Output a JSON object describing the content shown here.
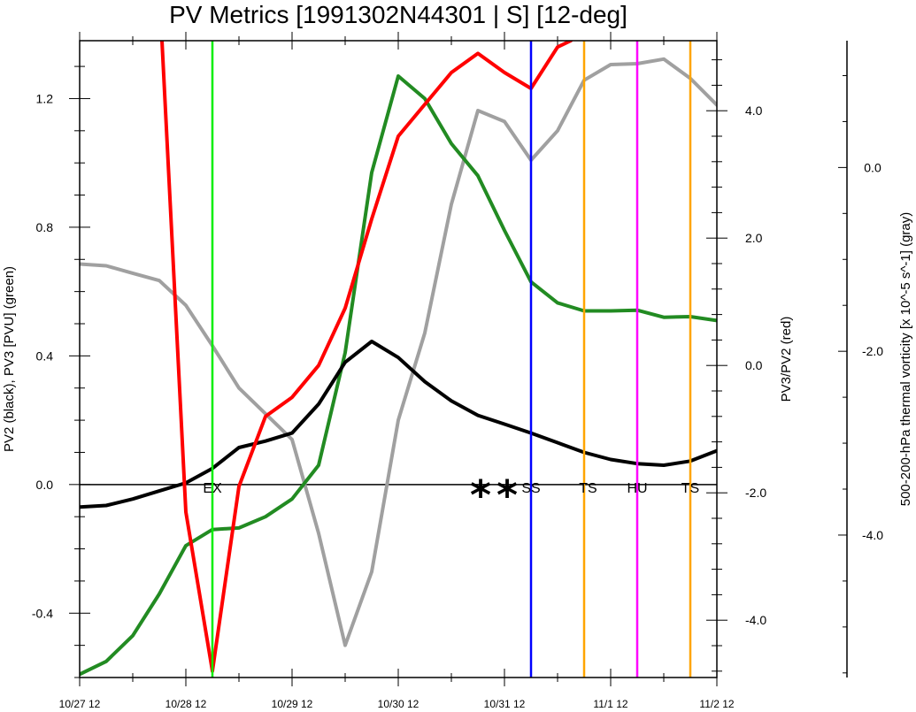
{
  "chart_data": {
    "type": "line",
    "title": "PV Metrics [1991302N44301 | S] [12-deg]",
    "xlabel": "",
    "x_tick_labels": [
      "10/27 12",
      "10/28 12",
      "10/29 12",
      "10/30 12",
      "10/31 12",
      "11/1 12",
      "11/2 12"
    ],
    "x_steps": [
      0,
      2,
      4,
      6,
      8,
      10,
      12,
      14,
      16,
      18,
      20,
      22,
      24
    ],
    "axes": {
      "left": {
        "label": "PV2 (black), PV3 [PVU] (green)",
        "ylim": [
          -0.6,
          1.38
        ],
        "ticks": [
          -0.4,
          0.0,
          0.4,
          0.8,
          1.2
        ],
        "tick_labels": [
          "-0.4",
          "0.0",
          "0.4",
          "0.8",
          "1.2"
        ]
      },
      "right": {
        "label": "PV3/PV2 (red)",
        "ylim": [
          -4.9,
          5.1
        ],
        "ticks": [
          -4.0,
          -2.0,
          0.0,
          2.0,
          4.0
        ],
        "tick_labels": [
          "-4.0",
          "-2.0",
          "0.0",
          "2.0",
          "4.0"
        ]
      },
      "far_right": {
        "label": "500-200-hPa thermal vorticity [x 10^-5 s^-1] (gray)",
        "ylim": [
          -5.55,
          1.38
        ],
        "ticks": [
          -4.0,
          -2.0,
          0.0
        ],
        "tick_labels": [
          "-4.0",
          "-2.0",
          "0.0"
        ]
      }
    },
    "series": [
      {
        "name": "PV2",
        "axis": "left",
        "color": "#000000",
        "x": [
          0,
          1,
          2,
          3,
          4,
          5,
          6,
          7,
          8,
          9,
          10,
          11,
          12,
          13,
          14,
          15,
          16,
          17,
          18,
          19,
          20,
          21,
          22,
          23,
          24
        ],
        "values": [
          -0.07,
          -0.065,
          -0.045,
          -0.02,
          0.005,
          0.05,
          0.115,
          0.135,
          0.16,
          0.25,
          0.38,
          0.445,
          0.395,
          0.32,
          0.26,
          0.215,
          0.188,
          0.16,
          0.13,
          0.1,
          0.078,
          0.065,
          0.06,
          0.073,
          0.105
        ]
      },
      {
        "name": "PV3",
        "axis": "left",
        "color": "#228b22",
        "x": [
          0,
          1,
          2,
          3,
          4,
          5,
          6,
          7,
          8,
          9,
          10,
          11,
          12,
          13,
          14,
          15,
          16,
          17,
          18,
          19,
          20,
          21,
          22,
          23,
          24
        ],
        "values": [
          -0.59,
          -0.55,
          -0.47,
          -0.34,
          -0.19,
          -0.14,
          -0.135,
          -0.1,
          -0.045,
          0.06,
          0.41,
          0.97,
          1.27,
          1.2,
          1.06,
          0.96,
          0.79,
          0.63,
          0.565,
          0.54,
          0.54,
          0.542,
          0.52,
          0.522,
          0.51
        ]
      },
      {
        "name": "PV3/PV2",
        "axis": "right",
        "color": "#ff0000",
        "x": [
          3.1,
          4,
          5,
          6,
          7,
          8,
          9,
          10,
          11,
          12,
          13,
          14,
          15,
          16,
          17,
          18,
          18.5
        ],
        "values": [
          5.1,
          -2.3,
          -4.8,
          -1.9,
          -0.8,
          -0.5,
          0.0,
          0.9,
          2.3,
          3.6,
          4.1,
          4.6,
          4.9,
          4.6,
          4.35,
          5.0,
          5.1
        ]
      },
      {
        "name": "thermal vorticity",
        "axis": "far_right",
        "color": "#a0a0a0",
        "x": [
          0,
          1,
          2,
          3,
          4,
          5,
          6,
          7,
          8,
          9,
          10,
          11,
          12,
          13,
          14,
          15,
          16,
          17,
          18,
          19,
          20,
          21,
          22,
          23,
          24
        ],
        "values": [
          -1.05,
          -1.07,
          -1.15,
          -1.23,
          -1.5,
          -1.94,
          -2.4,
          -2.68,
          -2.96,
          -3.98,
          -5.2,
          -4.4,
          -2.75,
          -1.8,
          -0.4,
          0.62,
          0.5,
          0.08,
          0.4,
          0.95,
          1.12,
          1.13,
          1.18,
          0.97,
          0.68
        ]
      }
    ],
    "reference_line": {
      "axis": "left",
      "value": 0.0,
      "color": "#000000"
    },
    "event_lines": [
      {
        "x": 5,
        "label": "EX",
        "color": "#00ee00",
        "label_x": 5
      },
      {
        "x": 17,
        "label": "SS",
        "color": "#0000ff",
        "label_x": 17
      },
      {
        "x": 19,
        "label": "TS",
        "color": "#ffa500",
        "label_x": 19.15
      },
      {
        "x": 21,
        "label": "HU",
        "color": "#ff00ff",
        "label_x": 21
      },
      {
        "x": 23,
        "label": "TS",
        "color": "#ffa500",
        "label_x": 23
      }
    ],
    "markers": [
      {
        "x": 15.1,
        "label": "*"
      },
      {
        "x": 16.1,
        "label": "*"
      }
    ]
  }
}
